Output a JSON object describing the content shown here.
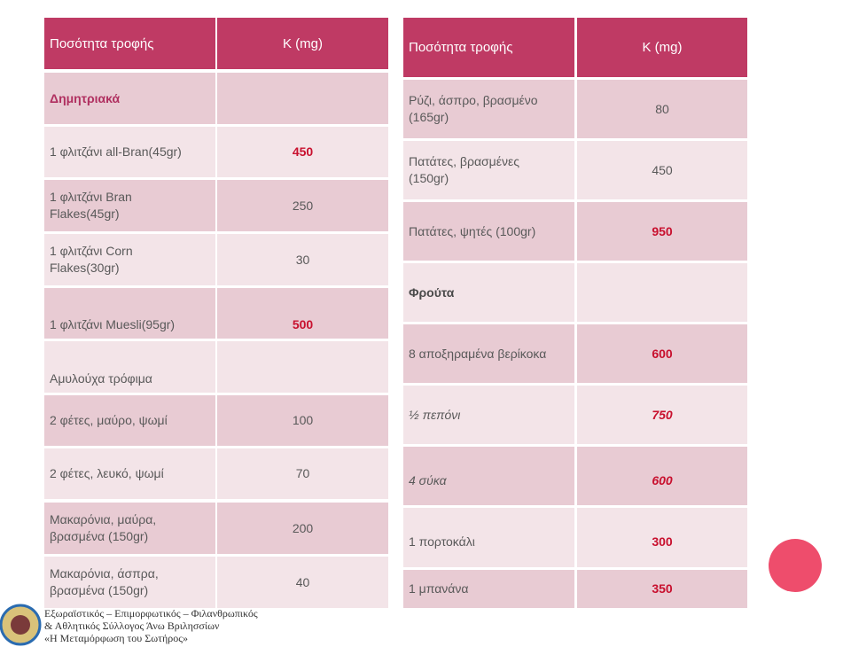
{
  "left": {
    "header": [
      "Ποσότητα τροφής",
      "K (mg)"
    ],
    "rows": [
      [
        "Δημητριακά"
      ],
      [
        "1 φλιτζάνι all-Bran(45gr)",
        450
      ],
      [
        "1 φλιτζάνι Bran Flakes(45gr)",
        250
      ],
      [
        "1 φλιτζάνι Corn Flakes(30gr)",
        30
      ],
      [
        "1 φλιτζάνι Muesli(95gr)",
        500
      ],
      [
        "Αμυλούχα τρόφιμα"
      ],
      [
        "2 φέτες, μαύρο, ψωμί",
        100
      ],
      [
        "2 φέτες, λευκό, ψωμί",
        70
      ],
      [
        "Μακαρόνια, μαύρα, βρασμένα (150gr)",
        200
      ],
      [
        "Μακαρόνια, άσπρα, βρασμένα (150gr)",
        40
      ]
    ]
  },
  "right": {
    "header": [
      "Ποσότητα τροφής",
      "K (mg)"
    ],
    "rows": [
      [
        "Ρύζι, άσπρο, βρασμένο (165gr)",
        80
      ],
      [
        "Πατάτες, βρασμένες (150gr)",
        450
      ],
      [
        "Πατάτες, ψητές (100gr)",
        950
      ],
      [
        "Φρούτα"
      ],
      [
        "8 αποξηραμένα βερίκοκα",
        600
      ],
      [
        "½ πεπόνι",
        750
      ],
      [
        "4 σύκα",
        600
      ],
      [
        "1 πορτοκάλι",
        300
      ],
      [
        "1 μπανάνα",
        350
      ]
    ]
  },
  "footer": {
    "lines": [
      "Εξωραϊστικός – Επιμορφωτικός – Φιλανθρωπικός",
      "& Αθλητικός Σύλλογος Άνω Βριλησσίων",
      "«Η Μεταμόρφωση του Σωτήρος»"
    ]
  }
}
